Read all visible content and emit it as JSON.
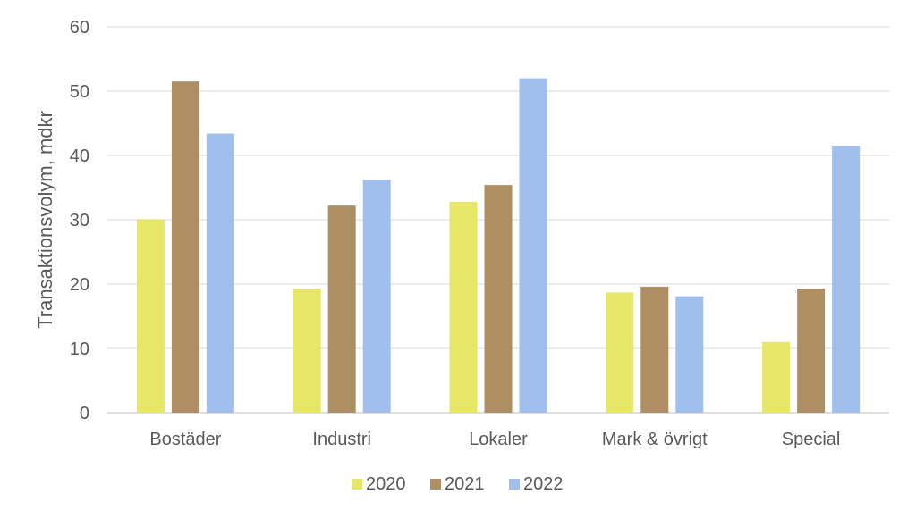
{
  "chart_data": {
    "type": "bar",
    "title": "",
    "xlabel": "",
    "ylabel": "Transaktionsvolym, mdkr",
    "categories": [
      "Bostäder",
      "Industri",
      "Lokaler",
      "Mark & övrigt",
      "Special"
    ],
    "ylim": [
      0,
      60
    ],
    "yticks": [
      0,
      10,
      20,
      30,
      40,
      50,
      60
    ],
    "grid": true,
    "legend_position": "bottom",
    "series": [
      {
        "name": "2020",
        "color": "#e6e667",
        "values": [
          30.1,
          19.3,
          32.8,
          18.7,
          11.0
        ]
      },
      {
        "name": "2021",
        "color": "#ad8f63",
        "values": [
          51.5,
          32.2,
          35.4,
          19.6,
          19.3
        ]
      },
      {
        "name": "2022",
        "color": "#a1bfec",
        "values": [
          43.4,
          36.2,
          52.0,
          18.1,
          41.4
        ]
      }
    ]
  }
}
